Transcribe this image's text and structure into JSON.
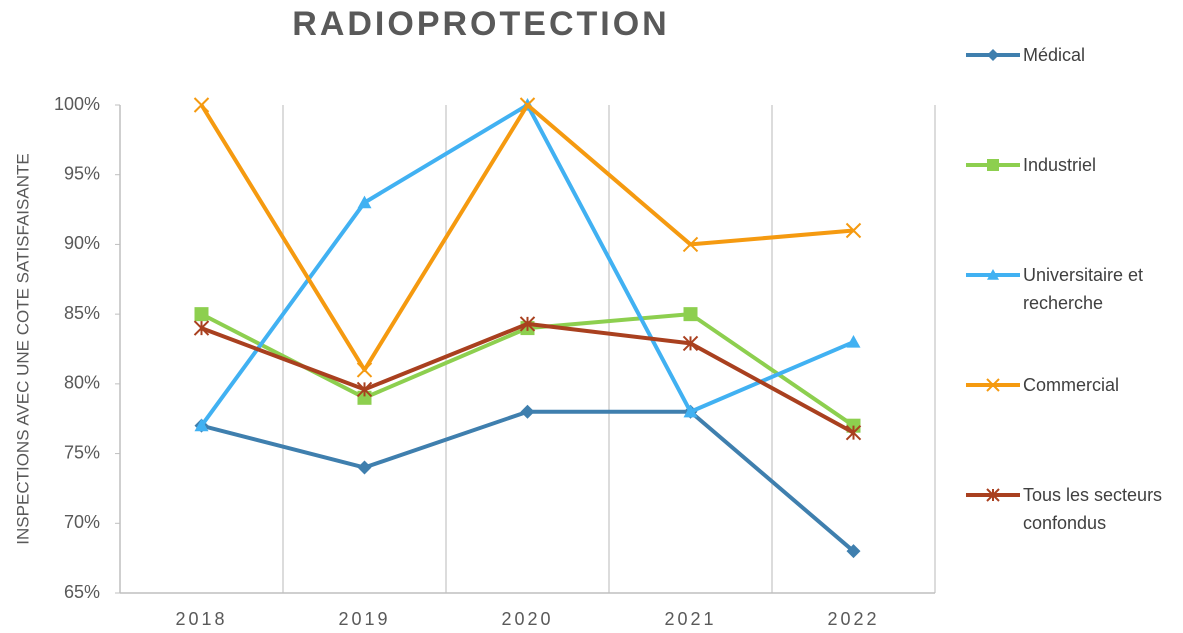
{
  "chart_data": {
    "type": "line",
    "title": "RADIOPROTECTION",
    "y_label": "INSPECTIONS AVEC UNE COTE SATISFAISANTE",
    "categories": [
      "2018",
      "2019",
      "2020",
      "2021",
      "2022"
    ],
    "series": [
      {
        "name": "Médical",
        "color": "#3f7fae",
        "marker": "diamond",
        "values": [
          77,
          74,
          78,
          78,
          68
        ]
      },
      {
        "name": "Industriel",
        "color": "#8dcf4f",
        "marker": "square",
        "values": [
          85,
          79,
          84,
          85,
          77
        ]
      },
      {
        "name": "Universitaire et recherche",
        "color": "#41b1f2",
        "marker": "triangle",
        "values": [
          77,
          93,
          100,
          78,
          83
        ]
      },
      {
        "name": "Commercial",
        "color": "#f59a10",
        "marker": "x",
        "values": [
          100,
          81,
          100,
          90,
          91
        ]
      },
      {
        "name": "Tous les secteurs confondus",
        "color": "#a9401f",
        "marker": "star",
        "values": [
          84,
          79.6,
          84.3,
          82.9,
          76.5
        ]
      }
    ],
    "ylim": [
      65,
      100
    ],
    "yticks": [
      {
        "value": 65,
        "label": "65%"
      },
      {
        "value": 70,
        "label": "70%"
      },
      {
        "value": 75,
        "label": "75%"
      },
      {
        "value": 80,
        "label": "80%"
      },
      {
        "value": 85,
        "label": "85%"
      },
      {
        "value": 90,
        "label": "90%"
      },
      {
        "value": 95,
        "label": "95%"
      },
      {
        "value": 100,
        "label": "100%"
      }
    ],
    "legend": "right"
  }
}
